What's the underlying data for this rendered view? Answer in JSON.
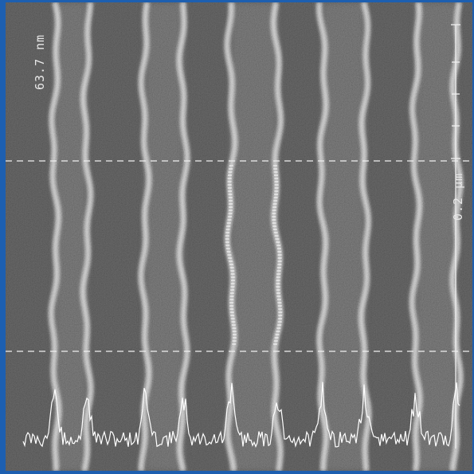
{
  "image": {
    "description_icon": "sem-micrograph-icon",
    "background_color": "#4e4e4e",
    "frame_color": "#1d5fb0",
    "line_color": "#ececec"
  },
  "labels": {
    "field_of_view": "63.7 nm",
    "scale_bar": "0.2 μm"
  }
}
